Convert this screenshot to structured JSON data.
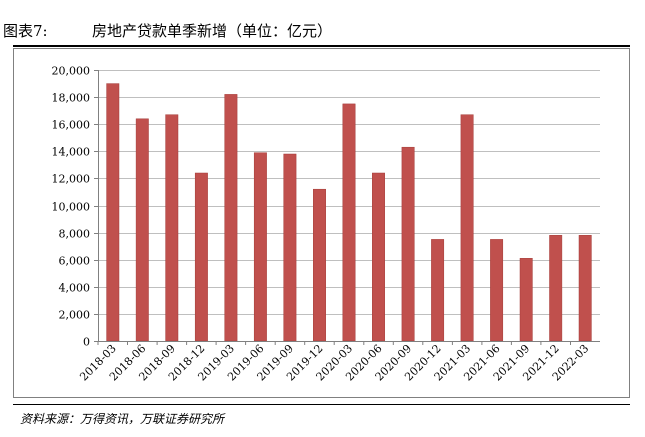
{
  "header": {
    "figure_label": "图表7:",
    "title": "房地产贷款单季新增（单位：亿元）"
  },
  "footer": {
    "source": "资料来源：万得资讯，万联证券研究所"
  },
  "colors": {
    "bar": "#C0504D",
    "bar_edge": "#A33B38",
    "grid": "#BFBFBF",
    "axis": "#808080",
    "text": "#000000"
  },
  "chart_data": {
    "type": "bar",
    "categories": [
      "2018-03",
      "2018-06",
      "2018-09",
      "2018-12",
      "2019-03",
      "2019-06",
      "2019-09",
      "2019-12",
      "2020-03",
      "2020-06",
      "2020-09",
      "2020-12",
      "2021-03",
      "2021-06",
      "2021-09",
      "2021-12",
      "2022-03"
    ],
    "values": [
      19000,
      16400,
      16700,
      12400,
      18200,
      13900,
      13800,
      11200,
      17500,
      12400,
      14300,
      7500,
      16700,
      7500,
      6100,
      7800,
      7800
    ],
    "ylim": [
      0,
      20000
    ],
    "yticks": [
      0,
      2000,
      4000,
      6000,
      8000,
      10000,
      12000,
      14000,
      16000,
      18000,
      20000
    ],
    "ytick_labels": [
      "0",
      "2,000",
      "4,000",
      "6,000",
      "8,000",
      "10,000",
      "12,000",
      "14,000",
      "16,000",
      "18,000",
      "20,000"
    ],
    "grid": true,
    "legend": "none",
    "xlabel": "",
    "ylabel": ""
  }
}
